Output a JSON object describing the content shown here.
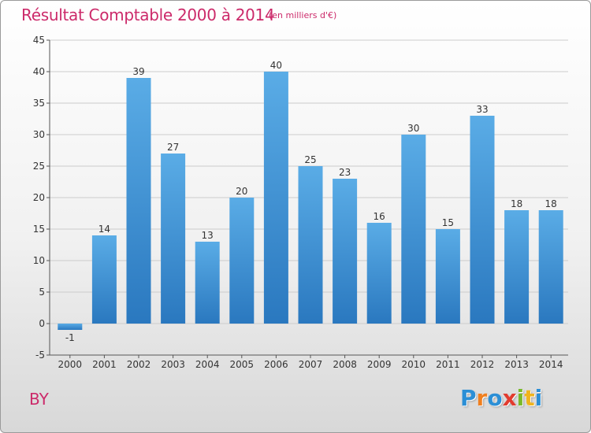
{
  "title": "Résultat Comptable 2000 à 2014",
  "subtitle": "(en milliers d'€)",
  "commune": "BY",
  "logo": {
    "letters": [
      "P",
      "r",
      "o",
      "x",
      "i",
      "t",
      "i"
    ],
    "colors": [
      "#2b8fd6",
      "#f07f1e",
      "#2b8fd6",
      "#e23b2e",
      "#7ab929",
      "#f0b41e",
      "#2b8fd6"
    ]
  },
  "colors": {
    "bar_top": "#5aace6",
    "bar_bottom": "#2a78bf",
    "grid": "#cccccc",
    "axis": "#555555"
  },
  "chart_data": {
    "type": "bar",
    "title": "Résultat Comptable 2000 à 2014",
    "subtitle": "(en milliers d'€)",
    "categories": [
      "2000",
      "2001",
      "2002",
      "2003",
      "2004",
      "2005",
      "2006",
      "2007",
      "2008",
      "2009",
      "2010",
      "2011",
      "2012",
      "2013",
      "2014"
    ],
    "values": [
      -1,
      14,
      39,
      27,
      13,
      20,
      40,
      25,
      23,
      16,
      30,
      15,
      33,
      18,
      18
    ],
    "ylim": [
      -5,
      45
    ],
    "yticks": [
      -5,
      0,
      5,
      10,
      15,
      20,
      25,
      30,
      35,
      40,
      45
    ],
    "grid": true,
    "xlabel": "",
    "ylabel": ""
  }
}
